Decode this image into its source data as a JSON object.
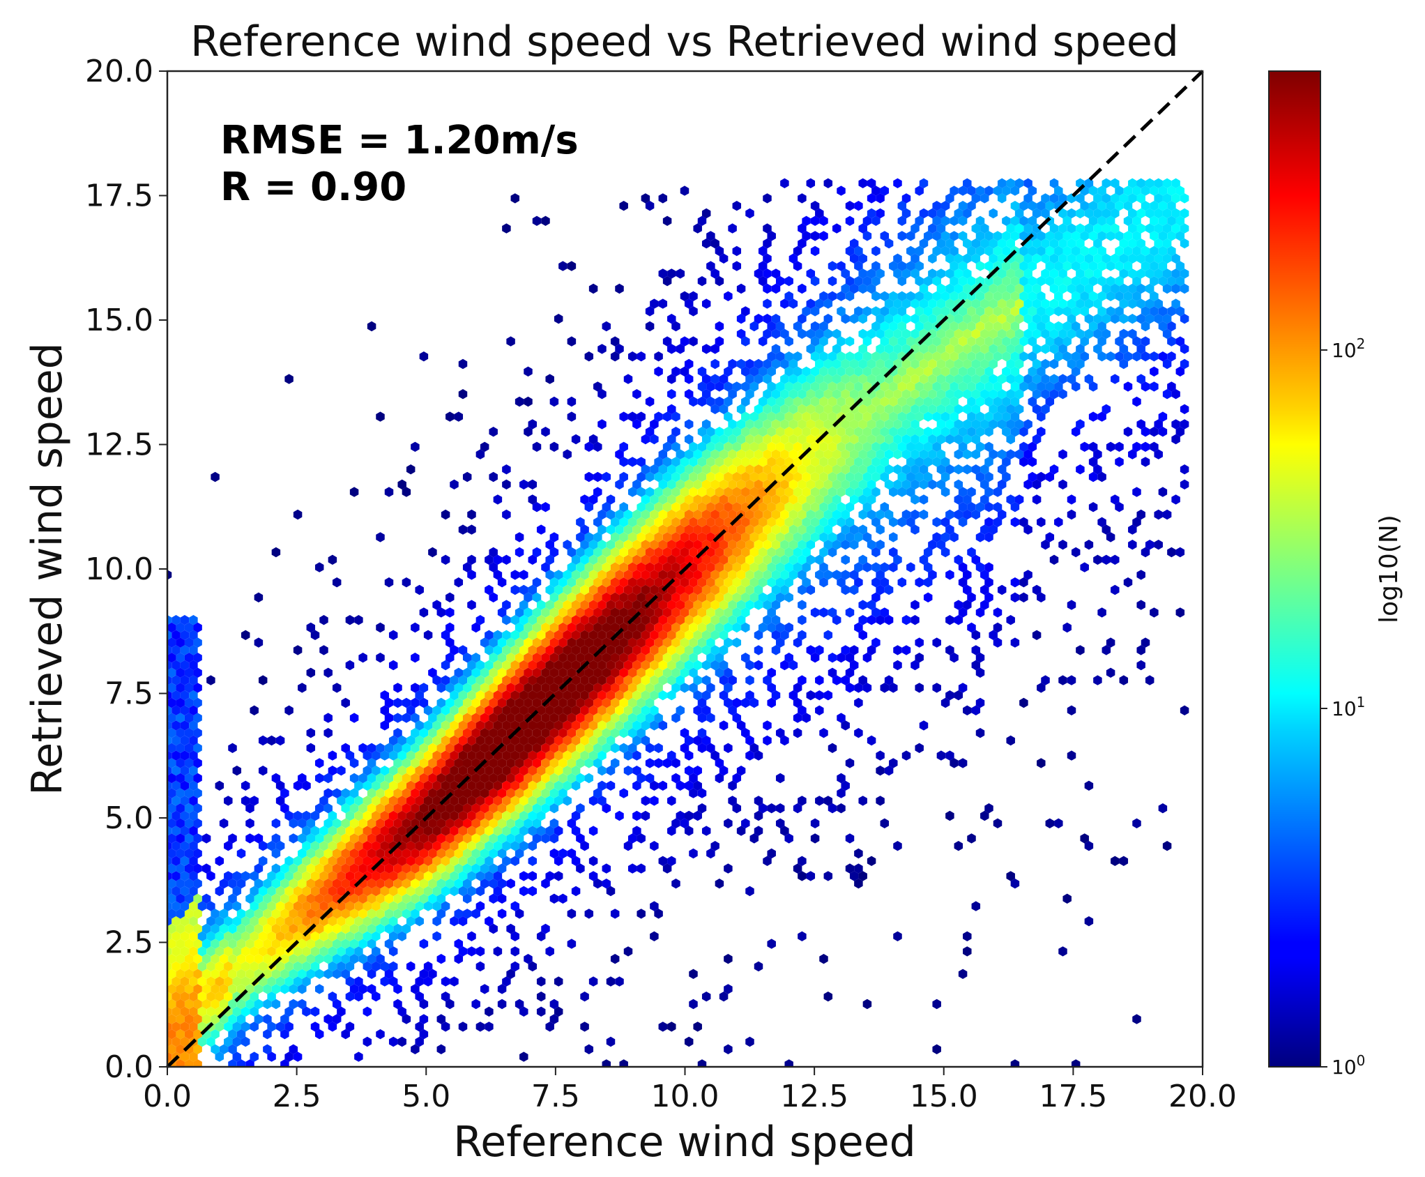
{
  "chart_data": {
    "type": "heatmap",
    "subtype": "hexbin",
    "title": "Reference wind speed vs Retrieved wind speed",
    "xlabel": "Reference wind speed",
    "ylabel": "Retrieved wind speed",
    "xlim": [
      0.0,
      20.0
    ],
    "ylim": [
      0.0,
      20.0
    ],
    "xticks": [
      "0.0",
      "2.5",
      "5.0",
      "7.5",
      "10.0",
      "12.5",
      "15.0",
      "17.5",
      "20.0"
    ],
    "yticks": [
      "0.0",
      "2.5",
      "5.0",
      "7.5",
      "10.0",
      "12.5",
      "15.0",
      "17.5",
      "20.0"
    ],
    "annotations": [
      {
        "text": "RMSE = 1.20m/s",
        "position": "top-left"
      },
      {
        "text": "R = 0.90",
        "position": "top-left"
      }
    ],
    "reference_line": {
      "style": "dashed",
      "color": "#000000",
      "from": [
        0,
        0
      ],
      "to": [
        20,
        20
      ]
    },
    "stats": {
      "rmse": 1.2,
      "rmse_unit": "m/s",
      "r": 0.9
    },
    "colorbar": {
      "label": "log10(N)",
      "scale": "log",
      "range": [
        1,
        600
      ],
      "colormap": "jet",
      "ticks": [
        {
          "label_base": "10",
          "label_exp": "0",
          "value": 1
        },
        {
          "label_base": "10",
          "label_exp": "1",
          "value": 10
        },
        {
          "label_base": "10",
          "label_exp": "2",
          "value": 100
        }
      ]
    },
    "grid": false,
    "density_ridge": [
      {
        "x": 0.5,
        "y": 1.2
      },
      {
        "x": 2.5,
        "y": 3.0
      },
      {
        "x": 5.0,
        "y": 5.0
      },
      {
        "x": 7.5,
        "y": 7.5
      },
      {
        "x": 10.0,
        "y": 10.0
      },
      {
        "x": 12.5,
        "y": 12.3
      },
      {
        "x": 15.0,
        "y": 14.3
      },
      {
        "x": 17.5,
        "y": 16.0
      }
    ]
  }
}
